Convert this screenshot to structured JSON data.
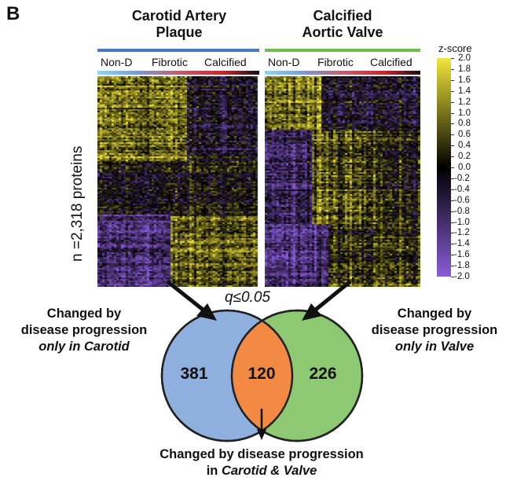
{
  "panel_label": "B",
  "heatmaps": [
    {
      "title_line1": "Carotid Artery",
      "title_line2": "Plaque",
      "stages": [
        "Non-D",
        "Fibrotic",
        "Calcified"
      ],
      "bar_color": "#4a78c8"
    },
    {
      "title_line1": "Calcified",
      "title_line2": "Aortic Valve",
      "stages": [
        "Non-D",
        "Fibrotic",
        "Calcified"
      ],
      "bar_color": "#6cbf4a"
    }
  ],
  "row_axis_label": "n =2,318 proteins",
  "colorbar": {
    "title": "z-score",
    "ticks": [
      "2.0",
      "1.8",
      "1.6",
      "1.4",
      "1.2",
      "1.0",
      "0.8",
      "0.6",
      "0.4",
      "0.2",
      "0.0",
      "-0.2",
      "-0.4",
      "-0.6",
      "-0.8",
      "-1.0",
      "-1.2",
      "-1.4",
      "-1.6",
      "-1.8",
      "-2.0"
    ],
    "colors": {
      "high": "#f2e63a",
      "mid": "#000000",
      "low": "#8a5cd8"
    }
  },
  "venn": {
    "threshold": "q≤0.05",
    "left_only_count": "381",
    "overlap_count": "120",
    "right_only_count": "226",
    "left_color": "#8fb0de",
    "right_color": "#8dc873",
    "overlap_color": "#f28a43",
    "left_caption": {
      "line1": "Changed by",
      "line2": "disease progression",
      "line3": "only in Carotid"
    },
    "right_caption": {
      "line1": "Changed by",
      "line2": "disease progression",
      "line3": "only in Valve"
    },
    "bottom_caption": {
      "line1": "Changed by disease progression",
      "line2_prefix": "in ",
      "line2_italic": "Carotid & Valve"
    }
  }
}
